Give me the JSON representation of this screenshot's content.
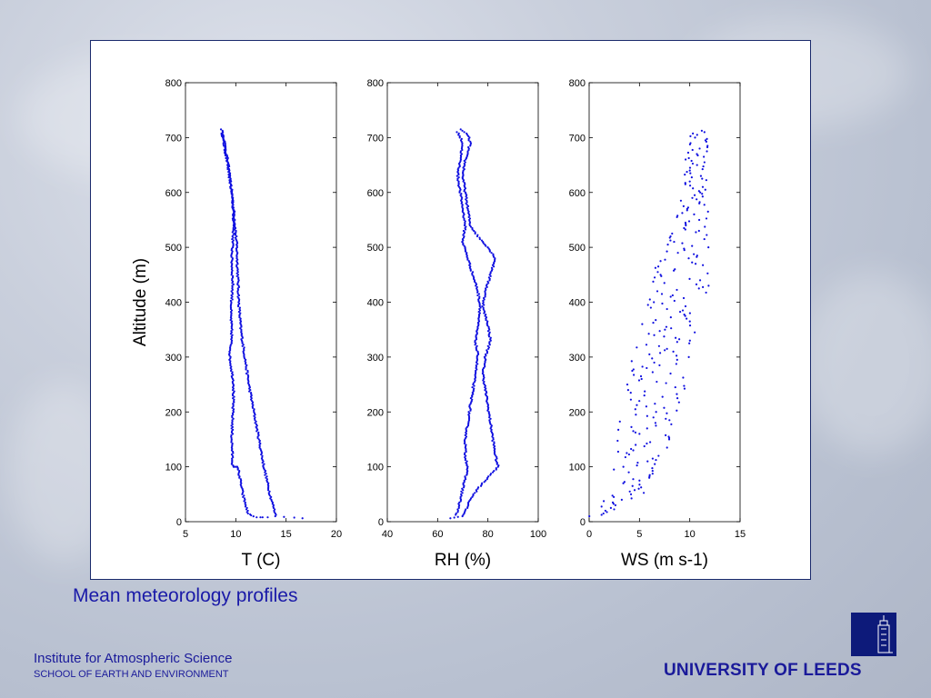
{
  "caption": "Mean meteorology profiles",
  "footer": {
    "institute": "Institute for Atmospheric Science",
    "school": "SCHOOL OF EARTH AND ENVIRONMENT",
    "university": "UNIVERSITY OF LEEDS"
  },
  "colors": {
    "points": "#1010e0",
    "caption": "#1a1aa8",
    "logo": "#0d1a7a"
  },
  "chart_data": [
    {
      "type": "scatter",
      "title": "",
      "xlabel": "T (C)",
      "ylabel": "Altitude (m)",
      "xlim": [
        5,
        20
      ],
      "ylim": [
        0,
        800
      ],
      "xticks": [
        5,
        10,
        15,
        20
      ],
      "yticks": [
        0,
        100,
        200,
        300,
        400,
        500,
        600,
        700,
        800
      ],
      "grid": false,
      "series": [
        {
          "profile": [
            [
              8.6,
              715
            ],
            [
              8.8,
              690
            ],
            [
              9.2,
              650
            ],
            [
              9.6,
              600
            ],
            [
              9.9,
              550
            ],
            [
              10.1,
              500
            ],
            [
              10.2,
              450
            ],
            [
              10.3,
              400
            ],
            [
              10.5,
              350
            ],
            [
              10.9,
              300
            ],
            [
              11.3,
              250
            ],
            [
              11.8,
              200
            ],
            [
              12.3,
              150
            ],
            [
              12.8,
              100
            ],
            [
              13.4,
              50
            ],
            [
              14.0,
              10
            ],
            [
              17.5,
              5
            ]
          ]
        },
        {
          "profile": [
            [
              8.7,
              710
            ],
            [
              9.0,
              680
            ],
            [
              9.4,
              630
            ],
            [
              9.7,
              580
            ],
            [
              9.8,
              540
            ],
            [
              9.6,
              480
            ],
            [
              9.7,
              430
            ],
            [
              9.5,
              380
            ],
            [
              9.6,
              340
            ],
            [
              9.4,
              300
            ],
            [
              9.8,
              250
            ],
            [
              9.7,
              200
            ],
            [
              9.6,
              150
            ],
            [
              9.7,
              100
            ],
            [
              10.2,
              100
            ],
            [
              10.7,
              50
            ],
            [
              11.2,
              15
            ],
            [
              12.0,
              8
            ],
            [
              13.5,
              8
            ]
          ]
        }
      ]
    },
    {
      "type": "scatter",
      "title": "",
      "xlabel": "RH (%)",
      "ylabel": "",
      "xlim": [
        40,
        100
      ],
      "ylim": [
        0,
        800
      ],
      "xticks": [
        40,
        60,
        80,
        100
      ],
      "yticks": [
        0,
        100,
        200,
        300,
        400,
        500,
        600,
        700,
        800
      ],
      "grid": false,
      "series": [
        {
          "profile": [
            [
              69,
              715
            ],
            [
              72,
              705
            ],
            [
              73,
              690
            ],
            [
              71,
              660
            ],
            [
              70,
              630
            ],
            [
              71,
              600
            ],
            [
              72,
              570
            ],
            [
              73,
              540
            ],
            [
              76,
              520
            ],
            [
              80,
              500
            ],
            [
              83,
              480
            ],
            [
              81,
              450
            ],
            [
              79,
              420
            ],
            [
              78,
              390
            ],
            [
              80,
              360
            ],
            [
              81,
              330
            ],
            [
              79,
              300
            ],
            [
              78,
              270
            ],
            [
              79,
              240
            ],
            [
              80,
              210
            ],
            [
              81,
              180
            ],
            [
              82,
              150
            ],
            [
              83,
              120
            ],
            [
              84,
              100
            ],
            [
              80,
              80
            ],
            [
              76,
              60
            ],
            [
              73,
              40
            ],
            [
              71,
              20
            ],
            [
              70,
              10
            ],
            [
              63,
              5
            ]
          ]
        },
        {
          "profile": [
            [
              68,
              710
            ],
            [
              70,
              690
            ],
            [
              69,
              660
            ],
            [
              68,
              630
            ],
            [
              69,
              600
            ],
            [
              70,
              570
            ],
            [
              71,
              540
            ],
            [
              70,
              510
            ],
            [
              72,
              480
            ],
            [
              74,
              450
            ],
            [
              76,
              420
            ],
            [
              77,
              390
            ],
            [
              76,
              360
            ],
            [
              75,
              330
            ],
            [
              76,
              300
            ],
            [
              75,
              270
            ],
            [
              74,
              240
            ],
            [
              73,
              210
            ],
            [
              72,
              180
            ],
            [
              71,
              150
            ],
            [
              71,
              120
            ],
            [
              72,
              100
            ],
            [
              71,
              80
            ],
            [
              70,
              60
            ],
            [
              69,
              40
            ],
            [
              68,
              20
            ],
            [
              67,
              10
            ]
          ]
        }
      ]
    },
    {
      "type": "scatter",
      "title": "",
      "xlabel": "WS (m s-1)",
      "ylabel": "",
      "xlim": [
        0,
        15
      ],
      "ylim": [
        0,
        800
      ],
      "xticks": [
        0,
        5,
        10,
        15
      ],
      "yticks": [
        0,
        100,
        200,
        300,
        400,
        500,
        600,
        700,
        800
      ],
      "grid": false,
      "series": [
        {
          "profile": [
            [
              0.5,
              10
            ],
            [
              1.5,
              20
            ],
            [
              3,
              40
            ],
            [
              4,
              60
            ],
            [
              4.5,
              90
            ],
            [
              5,
              120
            ],
            [
              5.5,
              160
            ],
            [
              6,
              200
            ],
            [
              6.5,
              240
            ],
            [
              7,
              280
            ],
            [
              7.5,
              320
            ],
            [
              8,
              360
            ],
            [
              8.5,
              400
            ],
            [
              9,
              440
            ],
            [
              9.5,
              480
            ],
            [
              10,
              520
            ],
            [
              10.2,
              560
            ],
            [
              10.5,
              600
            ],
            [
              10.7,
              650
            ],
            [
              10.8,
              700
            ],
            [
              10.6,
              715
            ]
          ],
          "spread": [
            0.5,
            1,
            1.5,
            2,
            2.5,
            2.5,
            3,
            3,
            3,
            3,
            3,
            3,
            3,
            3,
            2.5,
            2,
            2,
            1.5,
            1.2,
            1,
            0.8
          ]
        }
      ]
    }
  ]
}
